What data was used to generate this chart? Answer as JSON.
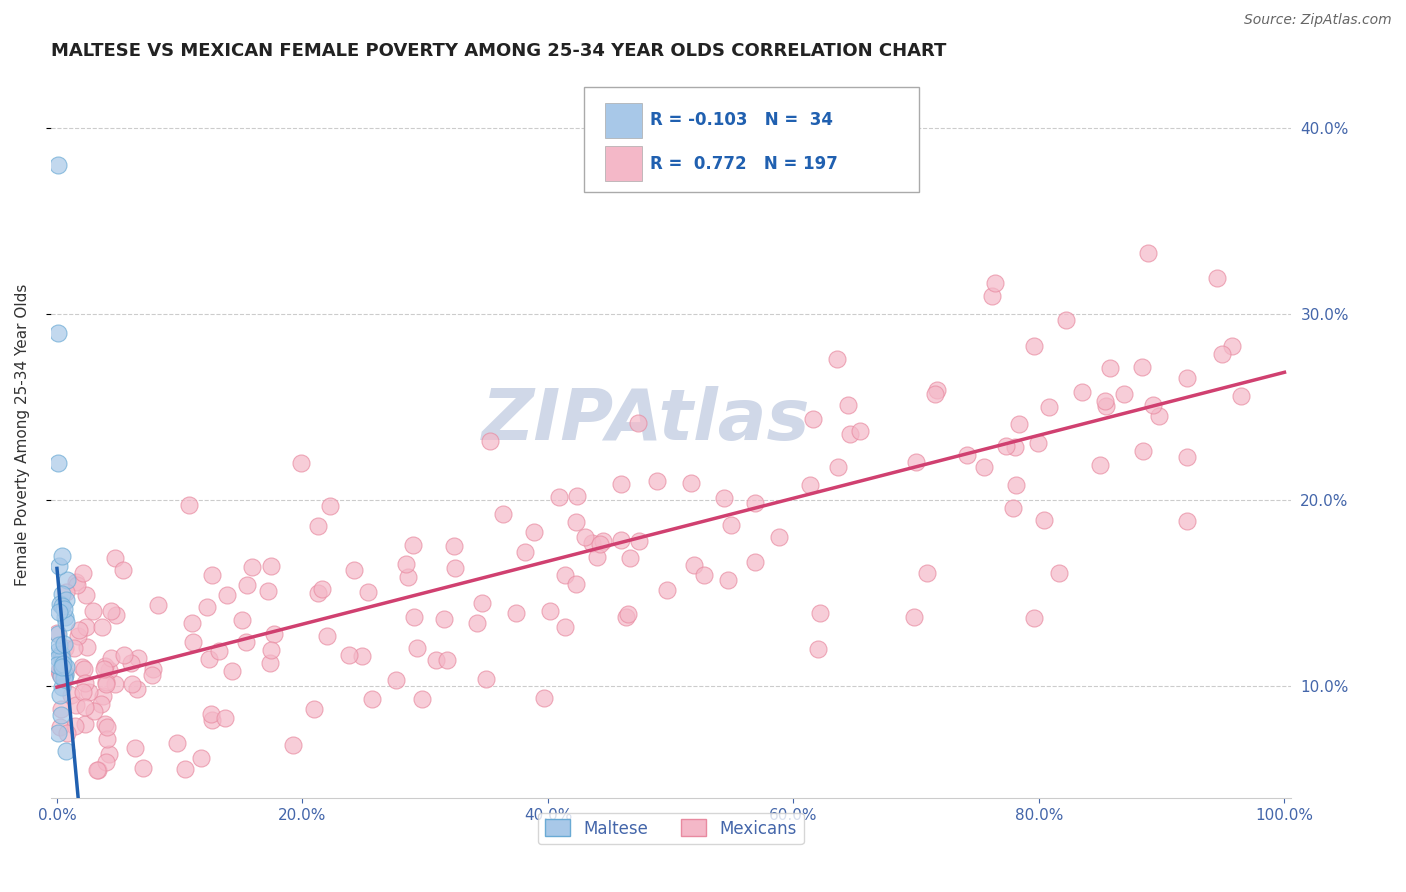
{
  "title": "MALTESE VS MEXICAN FEMALE POVERTY AMONG 25-34 YEAR OLDS CORRELATION CHART",
  "source": "Source: ZipAtlas.com",
  "ylabel": "Female Poverty Among 25-34 Year Olds",
  "xlim": [
    -0.005,
    1.005
  ],
  "ylim": [
    0.04,
    0.43
  ],
  "xtick_positions": [
    0.0,
    0.2,
    0.4,
    0.6,
    0.8,
    1.0
  ],
  "xticklabels": [
    "0.0%",
    "20.0%",
    "40.0%",
    "60.0%",
    "80.0%",
    "100.0%"
  ],
  "ytick_positions": [
    0.1,
    0.2,
    0.3,
    0.4
  ],
  "yticklabels_right": [
    "10.0%",
    "20.0%",
    "30.0%",
    "40.0%"
  ],
  "maltese_R": -0.103,
  "maltese_N": 34,
  "mexican_R": 0.772,
  "mexican_N": 197,
  "maltese_color": "#a8c8e8",
  "mexican_color": "#f4b8c8",
  "maltese_edge_color": "#6aaad4",
  "mexican_edge_color": "#e88aa0",
  "maltese_line_color": "#2060b0",
  "mexican_line_color": "#d04070",
  "maltese_dash_color": "#90b8d8",
  "background_color": "#ffffff",
  "grid_color": "#cccccc",
  "watermark_text": "ZIPAtlas",
  "watermark_color": "#d0d8e8",
  "legend_maltese": "Maltese",
  "legend_mexicans": "Mexicans",
  "title_color": "#222222",
  "source_color": "#666666",
  "tick_color": "#4466aa",
  "ylabel_color": "#333333"
}
